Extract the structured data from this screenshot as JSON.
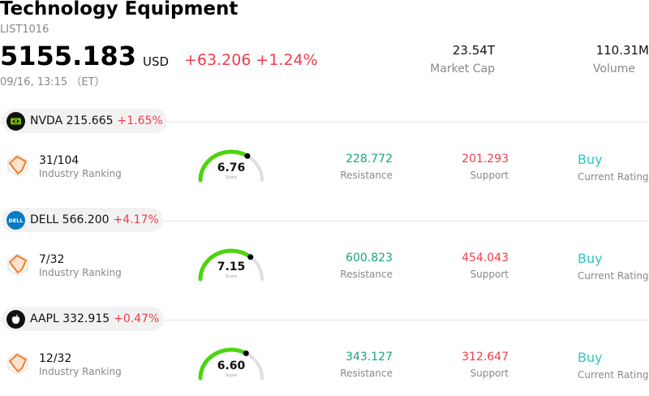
{
  "header": {
    "title": "Technology Equipment",
    "code": "LIST1016",
    "price": "5155.183",
    "currency": "USD",
    "change": "+63.206",
    "change_pct": "+1.24%",
    "timestamp": "09/16, 13:15 （ET）",
    "market_cap_value": "23.54T",
    "market_cap_label": "Market Cap",
    "volume_value": "110.31M",
    "volume_label": "Volume"
  },
  "stocks": [
    {
      "ticker_text": "NVDA 215.665",
      "change_pct": "+1.65%",
      "logo_icon": "nvidia-logo-icon",
      "ranking": "31/104",
      "ranking_label": "Industry Ranking",
      "score": "6.76",
      "score_value": 6.76,
      "score_label": "Score",
      "resistance": "228.772",
      "resistance_label": "Resistance",
      "support": "201.293",
      "support_label": "Support",
      "rating": "Buy",
      "rating_label": "Current Rating"
    },
    {
      "ticker_text": "DELL 566.200",
      "change_pct": "+4.17%",
      "logo_icon": "dell-logo-icon",
      "ranking": "7/32",
      "ranking_label": "Industry Ranking",
      "score": "7.15",
      "score_value": 7.15,
      "score_label": "Score",
      "resistance": "600.823",
      "resistance_label": "Resistance",
      "support": "454.043",
      "support_label": "Support",
      "rating": "Buy",
      "rating_label": "Current Rating"
    },
    {
      "ticker_text": "AAPL 332.915",
      "change_pct": "+0.47%",
      "logo_icon": "apple-logo-icon",
      "ranking": "12/32",
      "ranking_label": "Industry Ranking",
      "score": "6.60",
      "score_value": 6.6,
      "score_label": "Score",
      "resistance": "343.127",
      "resistance_label": "Resistance",
      "support": "312.647",
      "support_label": "Support",
      "rating": "Buy",
      "rating_label": "Current Rating"
    }
  ],
  "colors": {
    "up": "#f03c4b",
    "resistance": "#17a57f",
    "rating": "#2ec7c0",
    "gauge_fill": "#4cd40e",
    "gauge_track": "#dedee6"
  }
}
